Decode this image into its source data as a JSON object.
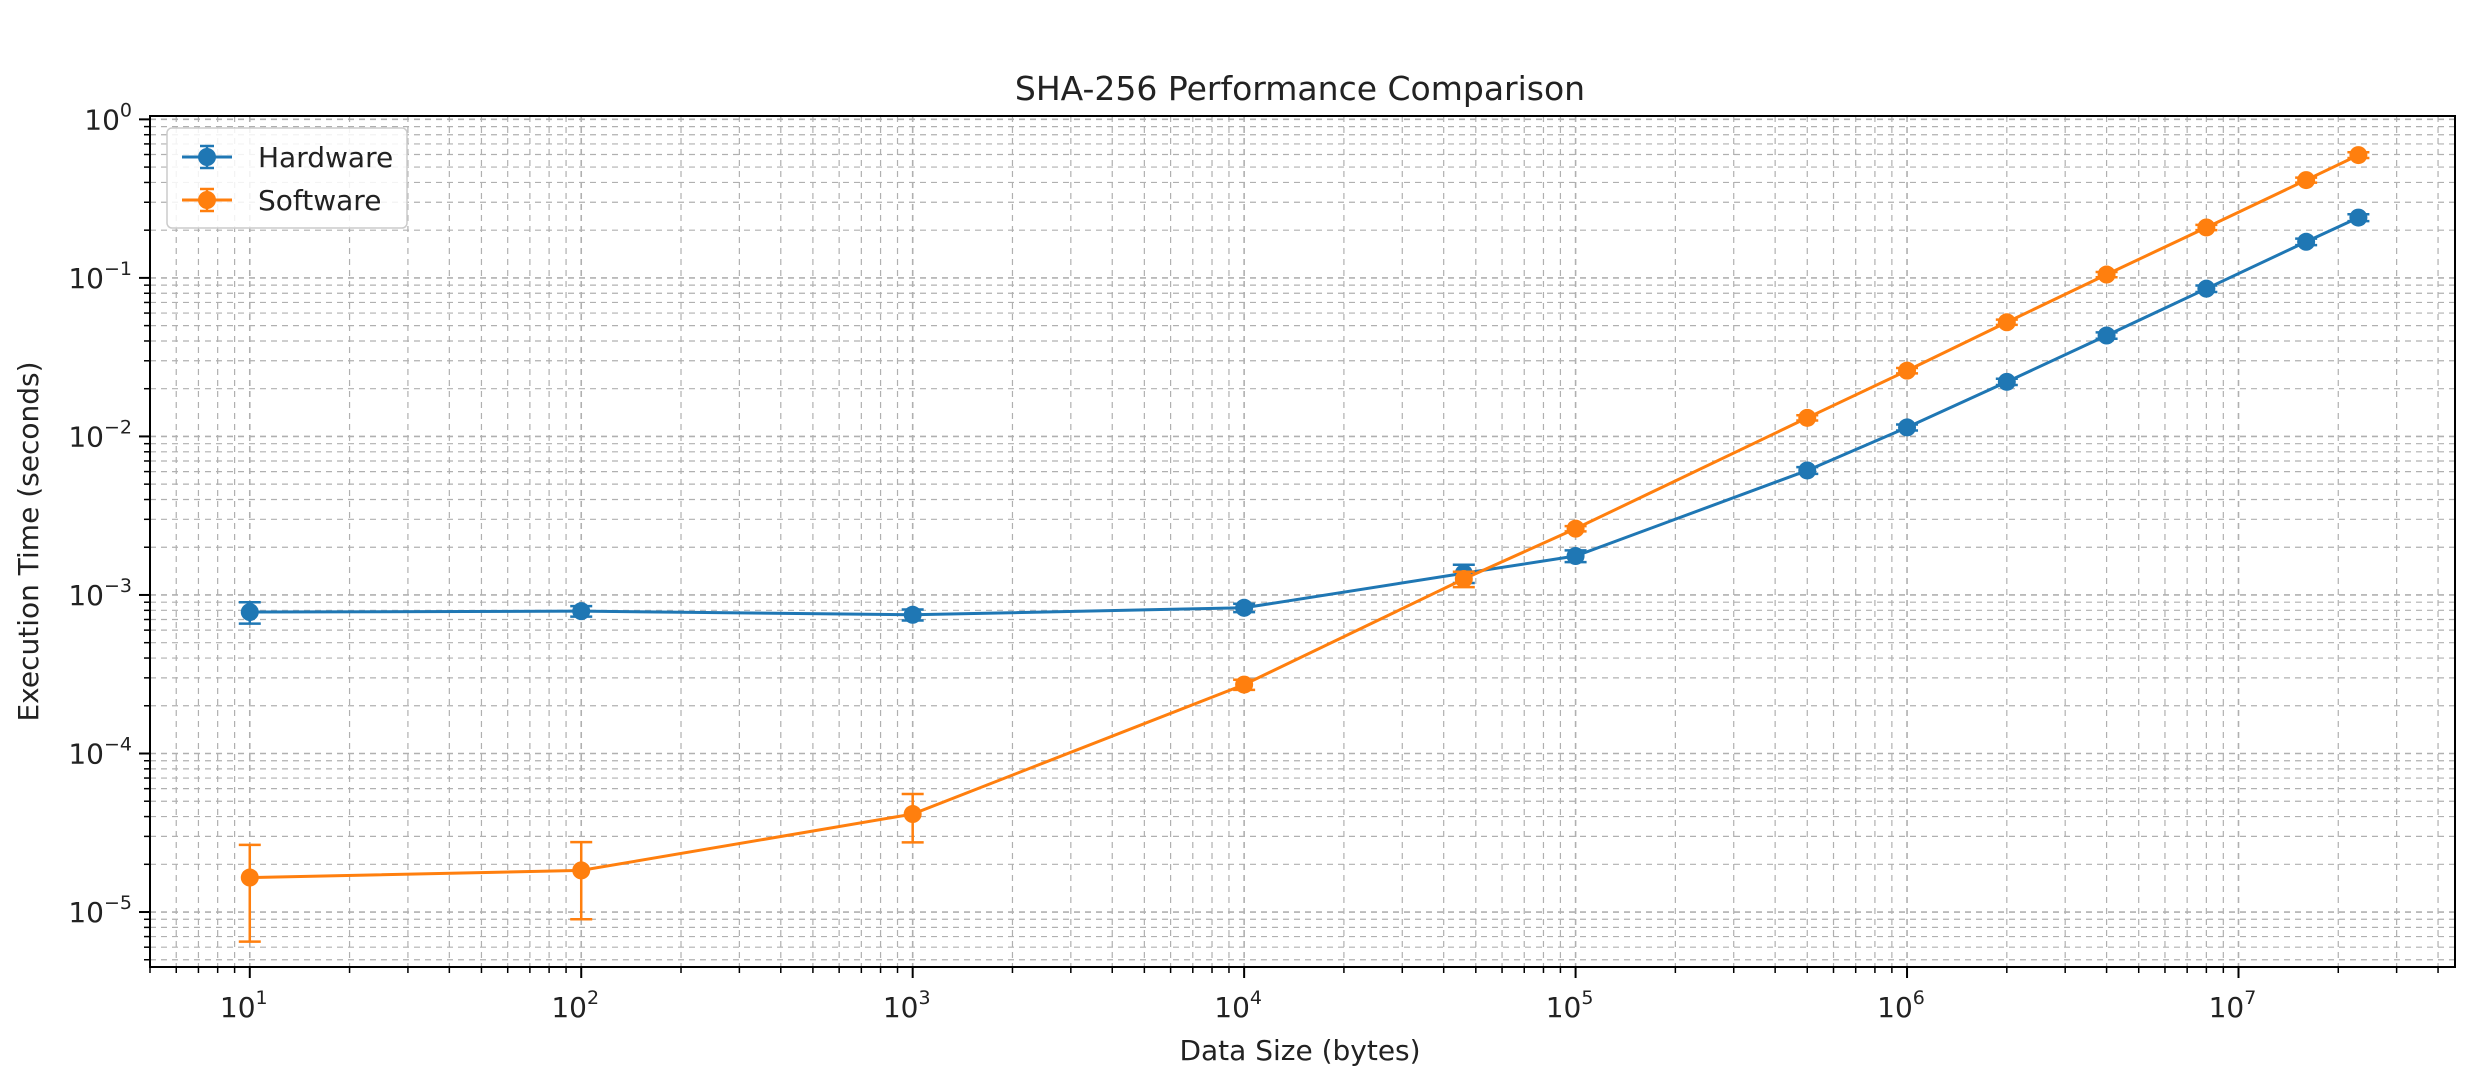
{
  "chart_data": {
    "type": "line",
    "title": "SHA-256 Performance Comparison",
    "xlabel": "Data Size (bytes)",
    "ylabel": "Execution Time (seconds)",
    "xscale": "log",
    "yscale": "log",
    "xlim": [
      5,
      45000000
    ],
    "ylim": [
      4.5e-06,
      1.05
    ],
    "grid": true,
    "legend_position": "top-left",
    "x_ticks": [
      {
        "base": "10",
        "exp": "1",
        "value": 10
      },
      {
        "base": "10",
        "exp": "2",
        "value": 100
      },
      {
        "base": "10",
        "exp": "3",
        "value": 1000
      },
      {
        "base": "10",
        "exp": "4",
        "value": 10000
      },
      {
        "base": "10",
        "exp": "5",
        "value": 100000
      },
      {
        "base": "10",
        "exp": "6",
        "value": 1000000
      },
      {
        "base": "10",
        "exp": "7",
        "value": 10000000
      }
    ],
    "y_ticks": [
      {
        "base": "10",
        "exp": "0",
        "value": 1
      },
      {
        "base": "10",
        "exp": "−1",
        "value": 0.1
      },
      {
        "base": "10",
        "exp": "−2",
        "value": 0.01
      },
      {
        "base": "10",
        "exp": "−3",
        "value": 0.001
      },
      {
        "base": "10",
        "exp": "−4",
        "value": 0.0001
      },
      {
        "base": "10",
        "exp": "−5",
        "value": 1e-05
      }
    ],
    "series": [
      {
        "name": "Hardware",
        "color": "#1f77b4",
        "points": [
          {
            "x": 10,
            "y": 0.00078,
            "err": 0.00012
          },
          {
            "x": 100,
            "y": 0.00079,
            "err": 6e-05
          },
          {
            "x": 1000,
            "y": 0.00075,
            "err": 6e-05
          },
          {
            "x": 10000,
            "y": 0.00083,
            "err": 5e-05
          },
          {
            "x": 46000,
            "y": 0.00137,
            "err": 0.00018
          },
          {
            "x": 100000,
            "y": 0.00176,
            "err": 0.00015
          },
          {
            "x": 500000,
            "y": 0.0061,
            "err": 0.0003
          },
          {
            "x": 1000000,
            "y": 0.0114,
            "err": 0.0005
          },
          {
            "x": 2000000,
            "y": 0.0221,
            "err": 0.001
          },
          {
            "x": 4000000,
            "y": 0.0433,
            "err": 0.002
          },
          {
            "x": 8000000,
            "y": 0.0855,
            "err": 0.004
          },
          {
            "x": 16000000,
            "y": 0.169,
            "err": 0.008
          },
          {
            "x": 23000000,
            "y": 0.24,
            "err": 0.012
          }
        ]
      },
      {
        "name": "Software",
        "color": "#ff7f0e",
        "points": [
          {
            "x": 10,
            "y": 1.65e-05,
            "err": 1e-05
          },
          {
            "x": 100,
            "y": 1.83e-05,
            "err": 9.3e-06
          },
          {
            "x": 1000,
            "y": 4.15e-05,
            "err": 1.4e-05
          },
          {
            "x": 10000,
            "y": 0.000272,
            "err": 2e-05
          },
          {
            "x": 46000,
            "y": 0.00126,
            "err": 0.00014
          },
          {
            "x": 100000,
            "y": 0.00262,
            "err": 0.0001
          },
          {
            "x": 500000,
            "y": 0.0131,
            "err": 0.0005
          },
          {
            "x": 1000000,
            "y": 0.026,
            "err": 0.001
          },
          {
            "x": 2000000,
            "y": 0.0525,
            "err": 0.002
          },
          {
            "x": 4000000,
            "y": 0.105,
            "err": 0.004
          },
          {
            "x": 8000000,
            "y": 0.208,
            "err": 0.008
          },
          {
            "x": 16000000,
            "y": 0.414,
            "err": 0.015
          },
          {
            "x": 23000000,
            "y": 0.595,
            "err": 0.025
          }
        ]
      }
    ]
  }
}
